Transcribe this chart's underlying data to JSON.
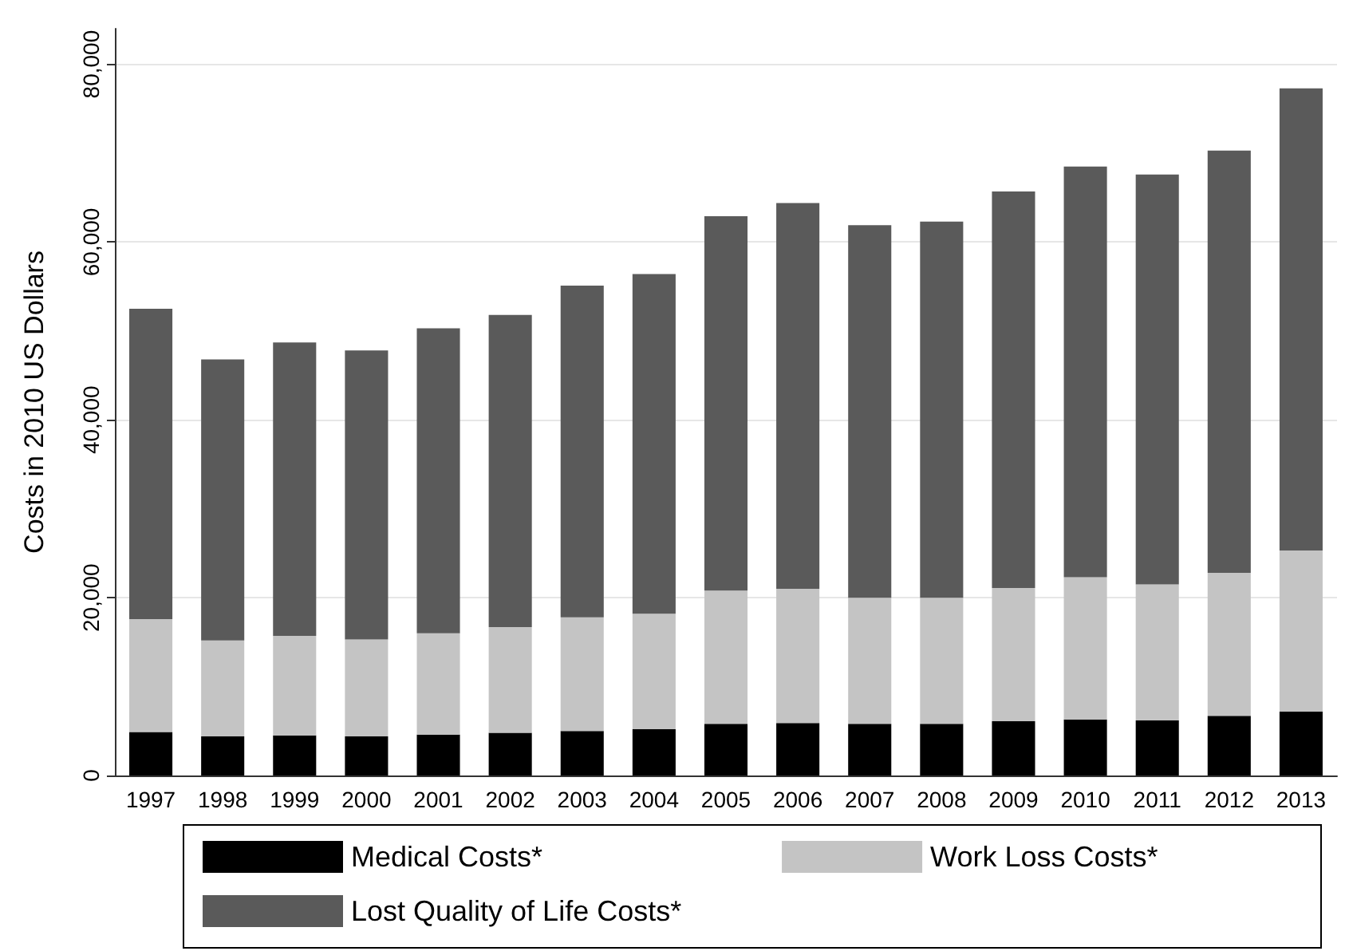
{
  "chart_data": {
    "type": "bar",
    "stacked": true,
    "ylabel": "Costs in 2010 US Dollars",
    "categories": [
      "1997",
      "1998",
      "1999",
      "2000",
      "2001",
      "2002",
      "2003",
      "2004",
      "2005",
      "2006",
      "2007",
      "2008",
      "2009",
      "2010",
      "2011",
      "2012",
      "2013"
    ],
    "series": [
      {
        "name": "Medical Costs*",
        "color": "#000000",
        "values": [
          4900,
          4400,
          4500,
          4400,
          4600,
          4800,
          5000,
          5200,
          5800,
          5900,
          5800,
          5800,
          6100,
          6300,
          6200,
          6700,
          7200
        ]
      },
      {
        "name": "Work Loss Costs*",
        "color": "#c4c4c4",
        "values": [
          12700,
          10800,
          11200,
          10900,
          11400,
          11900,
          12800,
          13000,
          15000,
          15100,
          14200,
          14200,
          15000,
          16000,
          15300,
          16100,
          18100
        ]
      },
      {
        "name": "Lost Quality of Life Costs*",
        "color": "#5a5a5a",
        "values": [
          34900,
          31600,
          33000,
          32500,
          34300,
          35100,
          37300,
          38200,
          42100,
          43400,
          41900,
          42300,
          44600,
          46200,
          46100,
          47500,
          52000
        ]
      }
    ],
    "ylim": [
      0,
      84000
    ],
    "yticks": [
      {
        "value": 0,
        "label": "0"
      },
      {
        "value": 20000,
        "label": "20,000"
      },
      {
        "value": 40000,
        "label": "40,000"
      },
      {
        "value": 60000,
        "label": "60,000"
      },
      {
        "value": 80000,
        "label": "80,000"
      }
    ],
    "grid": "y",
    "legend": "bottom"
  }
}
